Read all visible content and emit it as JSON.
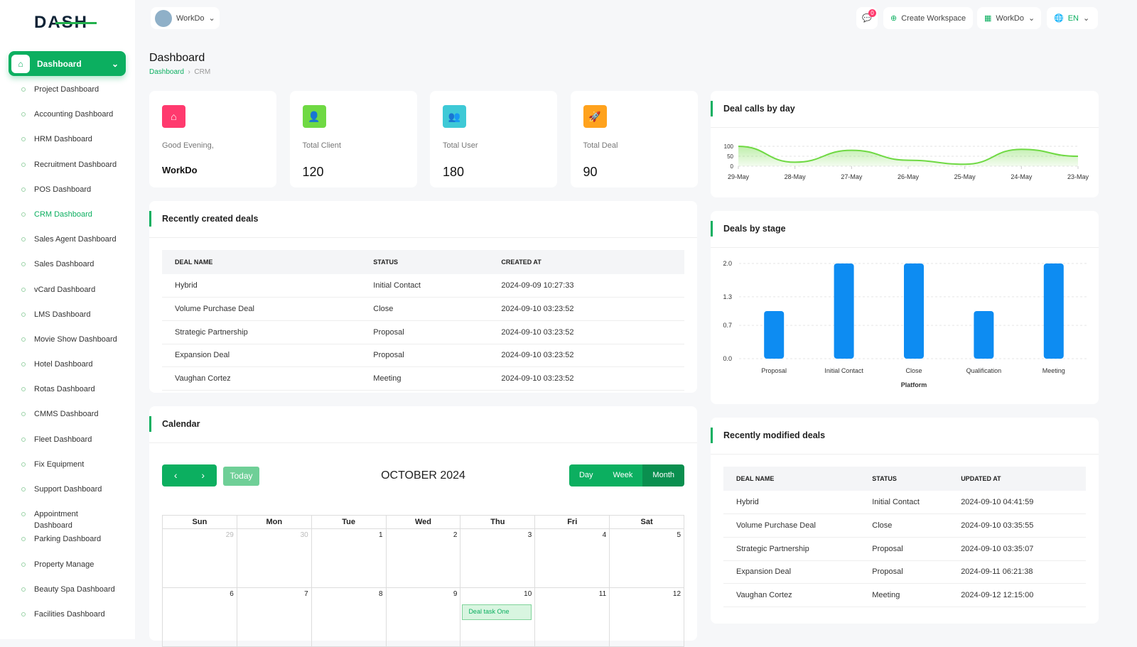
{
  "logo": "DASH",
  "workspace_selector": "WorkDo",
  "topbar": {
    "notification_count": "0",
    "create_workspace": "Create Workspace",
    "workspace": "WorkDo",
    "language": "EN"
  },
  "sidebar": {
    "dashboard": "Dashboard",
    "items": [
      "Project Dashboard",
      "Accounting Dashboard",
      "HRM Dashboard",
      "Recruitment Dashboard",
      "POS Dashboard",
      "CRM Dashboard",
      "Sales Agent Dashboard",
      "Sales Dashboard",
      "vCard Dashboard",
      "LMS Dashboard",
      "Movie Show Dashboard",
      "Hotel Dashboard",
      "Rotas Dashboard",
      "CMMS Dashboard",
      "Fleet Dashboard",
      "Fix Equipment",
      "Support Dashboard",
      "Appointment Dashboard",
      "Parking Dashboard",
      "Property Manage",
      "Beauty Spa Dashboard",
      "Facilities Dashboard"
    ],
    "active": "CRM Dashboard"
  },
  "page": {
    "title": "Dashboard",
    "breadcrumb": [
      "Dashboard",
      "CRM"
    ]
  },
  "stats": [
    {
      "label": "Good Evening,",
      "value": "WorkDo",
      "color": "#ff3a6e"
    },
    {
      "label": "Total Client",
      "value": "120",
      "color": "#6fd943"
    },
    {
      "label": "Total User",
      "value": "180",
      "color": "#3ec9d6"
    },
    {
      "label": "Total Deal",
      "value": "90",
      "color": "#ffa21d"
    }
  ],
  "recent_deals": {
    "title": "Recently created deals",
    "columns": [
      "DEAL NAME",
      "STATUS",
      "CREATED AT"
    ],
    "rows": [
      [
        "Hybrid",
        "Initial Contact",
        "2024-09-09 10:27:33"
      ],
      [
        "Volume Purchase Deal",
        "Close",
        "2024-09-10 03:23:52"
      ],
      [
        "Strategic Partnership",
        "Proposal",
        "2024-09-10 03:23:52"
      ],
      [
        "Expansion Deal",
        "Proposal",
        "2024-09-10 03:23:52"
      ],
      [
        "Vaughan Cortez",
        "Meeting",
        "2024-09-10 03:23:52"
      ]
    ]
  },
  "calendar": {
    "title": "Calendar",
    "today": "Today",
    "month": "OCTOBER 2024",
    "views": [
      "Day",
      "Week",
      "Month"
    ],
    "active_view": "Month",
    "days": [
      "Sun",
      "Mon",
      "Tue",
      "Wed",
      "Thu",
      "Fri",
      "Sat"
    ],
    "weeks": [
      [
        "29",
        "30",
        "1",
        "2",
        "3",
        "4",
        "5"
      ],
      [
        "6",
        "7",
        "8",
        "9",
        "10",
        "11",
        "12"
      ]
    ],
    "event": {
      "day": "10",
      "title": "Deal task One"
    }
  },
  "chart_data": [
    {
      "type": "area",
      "title": "Deal calls by day",
      "x": [
        "29-May",
        "28-May",
        "27-May",
        "26-May",
        "25-May",
        "24-May",
        "23-May"
      ],
      "values": [
        100,
        20,
        80,
        30,
        10,
        85,
        50
      ],
      "yticks": [
        "100",
        "50",
        "0"
      ],
      "ylim": [
        0,
        100
      ],
      "color": "#6fd943",
      "grid": true
    },
    {
      "type": "bar",
      "title": "Deals by stage",
      "categories": [
        "Proposal",
        "Initial Contact",
        "Close",
        "Qualification",
        "Meeting"
      ],
      "values": [
        1,
        2,
        2,
        1,
        2
      ],
      "xlabel": "Platform",
      "yticks": [
        "2.0",
        "1.3",
        "0.7",
        "0.0"
      ],
      "ylim": [
        0,
        2
      ],
      "color": "#0d8cf2",
      "grid": true
    }
  ],
  "modified_deals": {
    "title": "Recently modified deals",
    "columns": [
      "DEAL NAME",
      "STATUS",
      "UPDATED AT"
    ],
    "rows": [
      [
        "Hybrid",
        "Initial Contact",
        "2024-09-10 04:41:59"
      ],
      [
        "Volume Purchase Deal",
        "Close",
        "2024-09-10 03:35:55"
      ],
      [
        "Strategic Partnership",
        "Proposal",
        "2024-09-10 03:35:07"
      ],
      [
        "Expansion Deal",
        "Proposal",
        "2024-09-11 06:21:38"
      ],
      [
        "Vaughan Cortez",
        "Meeting",
        "2024-09-12 12:15:00"
      ]
    ]
  }
}
